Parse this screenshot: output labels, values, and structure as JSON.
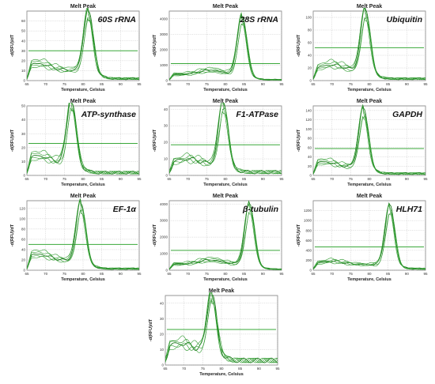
{
  "panel_title": "Melt Peak",
  "x_axis_label": "Temperature, Celsius",
  "y_axis_label": "-d(RFU)/dT",
  "colors": {
    "curve": "#2e9a2e",
    "curve_dark": "#1b7a1b",
    "threshold": "#3aa83a",
    "grid": "#b8b8b8",
    "frame": "#7a7a7a"
  },
  "chart_data": [
    {
      "type": "line",
      "gene": "60S rRNA",
      "title": "Melt Peak",
      "xlabel": "Temperature, Celsius",
      "ylabel": "-d(RFU)/dT",
      "xlim": [
        65,
        95
      ],
      "ylim": [
        0,
        70
      ],
      "x_ticks": [
        65,
        70,
        75,
        80,
        85,
        90,
        95
      ],
      "y_ticks": [
        0,
        10,
        20,
        30,
        40,
        50,
        60
      ],
      "threshold": 30,
      "peak_temp": 81.5,
      "peak_height": 65,
      "shoulder_temp": 68,
      "shoulder_height": 15,
      "baseline_end": 2,
      "grid": true
    },
    {
      "type": "line",
      "gene": "28S rRNA",
      "title": "Melt Peak",
      "xlabel": "Temperature, Celsius",
      "ylabel": "-d(RFU)/dT",
      "xlim": [
        65,
        95
      ],
      "ylim": [
        0,
        4500
      ],
      "x_ticks": [
        65,
        70,
        75,
        80,
        85,
        90,
        95
      ],
      "y_ticks": [
        0,
        1000,
        2000,
        3000,
        4000
      ],
      "threshold": 1100,
      "peak_temp": 84.5,
      "peak_height": 4000,
      "shoulder_temp": 76,
      "shoulder_height": 600,
      "baseline_end": 60,
      "grid": true
    },
    {
      "type": "line",
      "gene": "Ubiquitin",
      "title": "Melt Peak",
      "xlabel": "Temperature, Celsius",
      "ylabel": "-d(RFU)/dT",
      "xlim": [
        65,
        95
      ],
      "ylim": [
        0,
        110
      ],
      "x_ticks": [
        65,
        70,
        75,
        80,
        85,
        90,
        95
      ],
      "y_ticks": [
        0,
        20,
        40,
        60,
        80,
        100
      ],
      "threshold": 52,
      "peak_temp": 79,
      "peak_height": 105,
      "shoulder_temp": 70,
      "shoulder_height": 22,
      "baseline_end": 3,
      "grid": true
    },
    {
      "type": "line",
      "gene": "ATP-synthase",
      "title": "Melt Peak",
      "xlabel": "Temperature, Celsius",
      "ylabel": "-d(RFU)/dT",
      "xlim": [
        65,
        95
      ],
      "ylim": [
        0,
        50
      ],
      "x_ticks": [
        65,
        70,
        75,
        80,
        85,
        90,
        95
      ],
      "y_ticks": [
        0,
        10,
        20,
        30,
        40,
        50
      ],
      "threshold": 23,
      "peak_temp": 77,
      "peak_height": 49,
      "shoulder_temp": 68,
      "shoulder_height": 12,
      "baseline_end": 2,
      "grid": true
    },
    {
      "type": "line",
      "gene": "F1-ATPase",
      "title": "Melt Peak",
      "xlabel": "Temperature, Celsius",
      "ylabel": "-d(RFU)/dT",
      "xlim": [
        65,
        95
      ],
      "ylim": [
        0,
        42
      ],
      "x_ticks": [
        65,
        70,
        75,
        80,
        85,
        90,
        95
      ],
      "y_ticks": [
        0,
        10,
        20,
        30,
        40
      ],
      "threshold": 18.5,
      "peak_temp": 79.5,
      "peak_height": 41,
      "shoulder_temp": 70,
      "shoulder_height": 8,
      "baseline_end": 2,
      "grid": true
    },
    {
      "type": "line",
      "gene": "GAPDH",
      "title": "Melt Peak",
      "xlabel": "Temperature, Celsius",
      "ylabel": "-d(RFU)/dT",
      "xlim": [
        65,
        95
      ],
      "ylim": [
        0,
        150
      ],
      "x_ticks": [
        65,
        70,
        75,
        80,
        85,
        90,
        95
      ],
      "y_ticks": [
        0,
        20,
        40,
        60,
        80,
        100,
        120,
        140
      ],
      "threshold": 58,
      "peak_temp": 78.5,
      "peak_height": 135,
      "shoulder_temp": 68,
      "shoulder_height": 25,
      "baseline_end": 4,
      "grid": true
    },
    {
      "type": "line",
      "gene": "EF-1α",
      "title": "Melt Peak",
      "xlabel": "Temperature, Celsius",
      "ylabel": "-d(RFU)/dT",
      "xlim": [
        65,
        95
      ],
      "ylim": [
        0,
        135
      ],
      "x_ticks": [
        65,
        70,
        75,
        80,
        85,
        90,
        95
      ],
      "y_ticks": [
        0,
        20,
        40,
        60,
        80,
        100,
        120
      ],
      "threshold": 50,
      "peak_temp": 79.5,
      "peak_height": 122,
      "shoulder_temp": 68,
      "shoulder_height": 28,
      "baseline_end": 3,
      "grid": true
    },
    {
      "type": "line",
      "gene": "β-tubulin",
      "title": "Melt Peak",
      "xlabel": "Temperature, Celsius",
      "ylabel": "-d(RFU)/dT",
      "xlim": [
        65,
        95
      ],
      "ylim": [
        0,
        4200
      ],
      "x_ticks": [
        65,
        70,
        75,
        80,
        85,
        90,
        95
      ],
      "y_ticks": [
        0,
        1000,
        2000,
        3000,
        4000
      ],
      "threshold": 1200,
      "peak_temp": 86.5,
      "peak_height": 3850,
      "shoulder_temp": 76,
      "shoulder_height": 550,
      "baseline_end": 60,
      "grid": true
    },
    {
      "type": "line",
      "gene": "HLH71",
      "title": "Melt Peak",
      "xlabel": "Temperature, Celsius",
      "ylabel": "-d(RFU)/dT",
      "xlim": [
        65,
        95
      ],
      "ylim": [
        0,
        1400
      ],
      "x_ticks": [
        65,
        70,
        75,
        80,
        85,
        90,
        95
      ],
      "y_ticks": [
        0,
        200,
        400,
        600,
        800,
        1000,
        1200
      ],
      "threshold": 470,
      "peak_temp": 85.5,
      "peak_height": 1250,
      "shoulder_temp": 70,
      "shoulder_height": 150,
      "baseline_end": 30,
      "grid": true
    },
    {
      "type": "line",
      "gene": "",
      "title": "Melt Peak",
      "xlabel": "Temperature, Celsius",
      "ylabel": "-d(RFU)/dT",
      "xlim": [
        65,
        95
      ],
      "ylim": [
        0,
        45
      ],
      "x_ticks": [
        65,
        70,
        75,
        80,
        85,
        90,
        95
      ],
      "y_ticks": [
        0,
        10,
        20,
        30,
        40
      ],
      "threshold": 23,
      "peak_temp": 77.5,
      "peak_height": 41,
      "shoulder_temp": 69,
      "shoulder_height": 11,
      "baseline_end": 3,
      "grid": true
    }
  ]
}
